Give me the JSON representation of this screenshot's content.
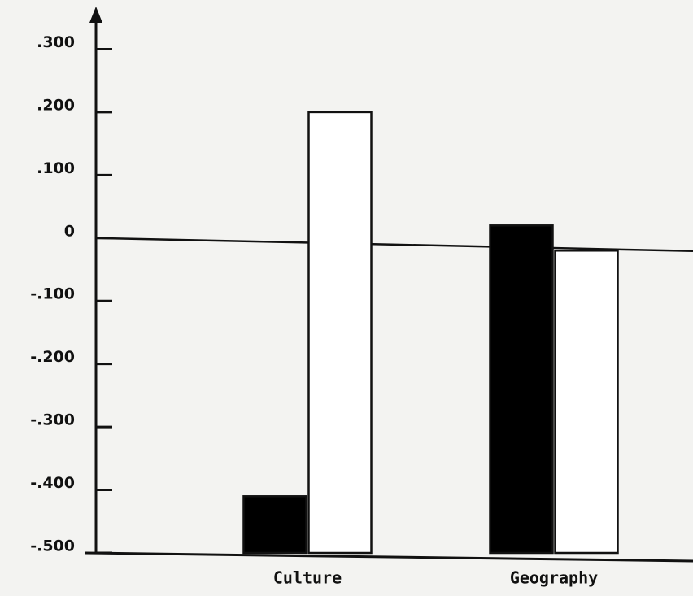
{
  "chart_data": {
    "type": "bar",
    "categories": [
      "Culture",
      "Geography"
    ],
    "series": [
      {
        "color": "#000000",
        "values": [
          -0.41,
          0.02
        ]
      },
      {
        "color": "#ffffff",
        "values": [
          0.2,
          -0.02
        ]
      }
    ],
    "ylim": [
      -0.5,
      0.36
    ],
    "yticks": [
      {
        "value": 0.3,
        "label": ".300"
      },
      {
        "value": 0.2,
        "label": ".200"
      },
      {
        "value": 0.1,
        "label": ".100"
      },
      0,
      {
        "value": -0.1,
        "label": "-.100"
      },
      {
        "value": -0.2,
        "label": "-.200"
      },
      {
        "value": -0.3,
        "label": "-.300"
      },
      {
        "value": -0.4,
        "label": "-.400"
      },
      {
        "value": -0.5,
        "label": "-.500"
      }
    ],
    "grid": false
  }
}
